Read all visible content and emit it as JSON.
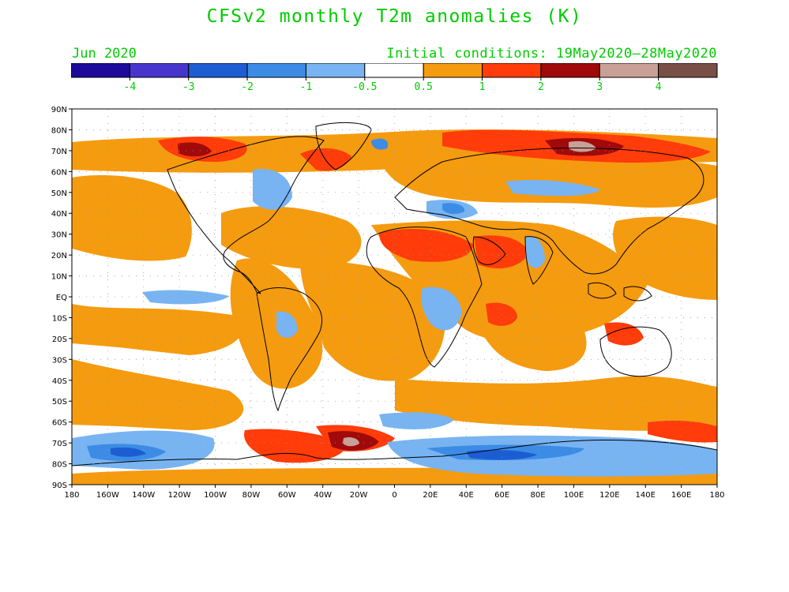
{
  "title": "CFSv2 monthly T2m anomalies (K)",
  "valid_month": "Jun 2020",
  "initial_conditions": "Initial conditions: 19May2020—28May2020",
  "colorbar": {
    "labels": [
      "-4",
      "-3",
      "-2",
      "-1",
      "-0.5",
      "0.5",
      "1",
      "2",
      "3",
      "4"
    ],
    "colors": [
      "#1e0a9a",
      "#4836cc",
      "#1c5ed2",
      "#3c8ce6",
      "#78b4f2",
      "#ffffff",
      "#f59b0f",
      "#ff3c0a",
      "#a00a0a",
      "#c8a096",
      "#785046"
    ]
  },
  "map": {
    "lat_labels": [
      "90N",
      "80N",
      "70N",
      "60N",
      "50N",
      "40N",
      "30N",
      "20N",
      "10N",
      "EQ",
      "10S",
      "20S",
      "30S",
      "40S",
      "50S",
      "60S",
      "70S",
      "80S",
      "90S"
    ],
    "lon_labels": [
      "180",
      "160W",
      "140W",
      "120W",
      "100W",
      "80W",
      "60W",
      "40W",
      "20W",
      "0",
      "20E",
      "40E",
      "60E",
      "80E",
      "100E",
      "120E",
      "140E",
      "160E",
      "180"
    ]
  }
}
